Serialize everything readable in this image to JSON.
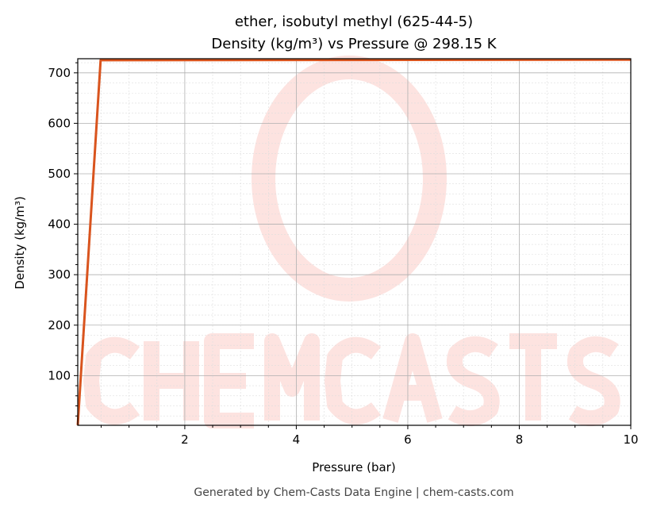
{
  "chart_data": {
    "type": "line",
    "title": "ether, isobutyl methyl (625-44-5)",
    "subtitle": "Density (kg/m³) vs Pressure @ 298.15 K",
    "xlabel": "Pressure (bar)",
    "ylabel": "Density (kg/m³)",
    "xlim": [
      0.08,
      10
    ],
    "ylim": [
      1.5,
      728
    ],
    "xticks": [
      2,
      4,
      6,
      8,
      10
    ],
    "yticks": [
      100,
      200,
      300,
      400,
      500,
      600,
      700
    ],
    "grid": true,
    "series": [
      {
        "color": "#d9541e",
        "x": [
          0.08,
          0.49,
          10
        ],
        "y": [
          2,
          725,
          726
        ]
      }
    ]
  },
  "watermark": {
    "text": "CHEMCASTS",
    "color": "#fde3e0"
  },
  "footer": "Generated by Chem-Casts Data Engine | chem-casts.com"
}
